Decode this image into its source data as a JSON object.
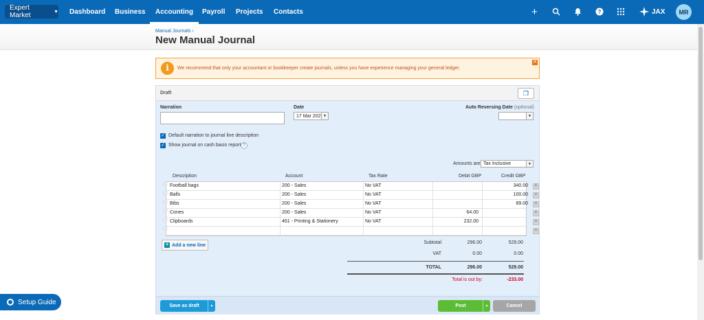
{
  "nav": {
    "org": "Expert Market",
    "items": [
      "Dashboard",
      "Business",
      "Accounting",
      "Payroll",
      "Projects",
      "Contacts"
    ],
    "active": "Accounting",
    "jax_label": "JAX",
    "avatar_initials": "MR",
    "icons": [
      "plus-icon",
      "search-icon",
      "bell-icon",
      "help-icon",
      "apps-grid-icon",
      "sparkle-icon"
    ]
  },
  "page": {
    "breadcrumb": "Manual Journals ›",
    "title": "New Manual Journal"
  },
  "warning": {
    "text": "We recommend that only your accountant or bookkeeper create journals, unless you have experience managing your general ledger.",
    "icon": "info-icon"
  },
  "form": {
    "status": "Draft",
    "narration_label": "Narration",
    "narration_value": "",
    "date_label": "Date",
    "date_value": "17 Mar 2025",
    "auto_reverse_label": "Auto Reversing Date",
    "auto_reverse_optional": "(optional)",
    "auto_reverse_value": "",
    "checkbox_default_narration": "Default narration to journal line description",
    "checkbox_cash_basis": "Show journal on cash basis reports",
    "amounts_are_label": "Amounts are",
    "amounts_are_value": "Tax Inclusive"
  },
  "table": {
    "headers": {
      "description": "Description",
      "account": "Account",
      "tax_rate": "Tax Rate",
      "debit": "Debit GBP",
      "credit": "Credit GBP"
    },
    "rows": [
      {
        "description": "Football bags",
        "account": "200 - Sales",
        "tax_rate": "No VAT",
        "debit": "",
        "credit": "340.00"
      },
      {
        "description": "Balls",
        "account": "200 - Sales",
        "tax_rate": "No VAT",
        "debit": "",
        "credit": "100.00"
      },
      {
        "description": "Bibs",
        "account": "200 - Sales",
        "tax_rate": "No VAT",
        "debit": "",
        "credit": "89.00"
      },
      {
        "description": "Cones",
        "account": "200 - Sales",
        "tax_rate": "No VAT",
        "debit": "64.00",
        "credit": ""
      },
      {
        "description": "Clipboards",
        "account": "461 - Printing & Stationery",
        "tax_rate": "No VAT",
        "debit": "232.00",
        "credit": ""
      },
      {
        "description": "",
        "account": "",
        "tax_rate": "",
        "debit": "",
        "credit": ""
      }
    ],
    "add_line_label": "Add a new line"
  },
  "totals": {
    "subtotal_label": "Subtotal",
    "subtotal_debit": "296.00",
    "subtotal_credit": "529.00",
    "vat_label": "VAT",
    "vat_debit": "0.00",
    "vat_credit": "0.00",
    "total_label": "TOTAL",
    "total_debit": "296.00",
    "total_credit": "529.00",
    "out_by_label": "Total is out by:",
    "out_by_value": "-233.00"
  },
  "buttons": {
    "save_draft": "Save as draft",
    "post": "Post",
    "cancel": "Cancel"
  },
  "setup_guide": "Setup Guide"
}
